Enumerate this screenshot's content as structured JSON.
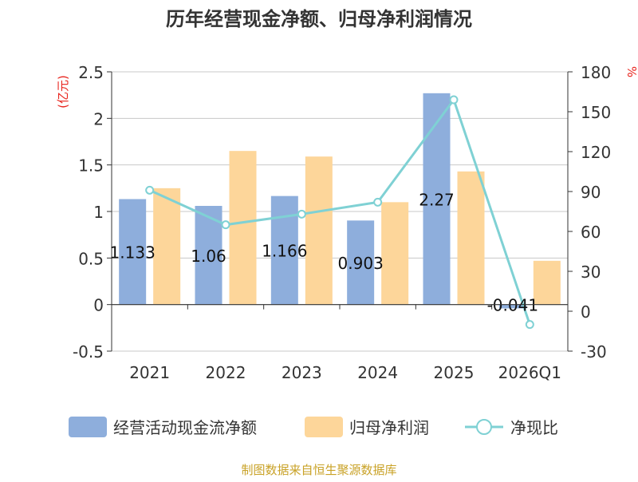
{
  "chart_data": {
    "type": "bar",
    "title": "历年经营现金净额、归母净利润情况",
    "categories": [
      "2021",
      "2022",
      "2023",
      "2024",
      "2025",
      "2026Q1"
    ],
    "left_axis": {
      "unit_label": "(亿元)",
      "ylim": [
        -0.5,
        2.5
      ],
      "ticks": [
        -0.5,
        0,
        0.5,
        1,
        1.5,
        2,
        2.5
      ],
      "tick_labels": [
        "-0.5",
        "0",
        "0.5",
        "1",
        "1.5",
        "2",
        "2.5"
      ]
    },
    "right_axis": {
      "unit_label": "%",
      "ylim": [
        -30,
        180
      ],
      "ticks": [
        -30,
        0,
        30,
        60,
        90,
        120,
        150,
        180
      ],
      "tick_labels": [
        "-30",
        "0",
        "30",
        "60",
        "90",
        "120",
        "150",
        "180"
      ]
    },
    "series": [
      {
        "name": "经营活动现金流净额",
        "kind": "bar",
        "axis": "left",
        "color": "#8eaedc",
        "values": [
          1.133,
          1.06,
          1.166,
          0.903,
          2.27,
          -0.041
        ],
        "data_labels": [
          "1.133",
          "1.06",
          "1.166",
          "0.903",
          "2.27",
          "-0.041"
        ]
      },
      {
        "name": "归母净利润",
        "kind": "bar",
        "axis": "left",
        "color": "#fdd69a",
        "values": [
          1.25,
          1.65,
          1.59,
          1.1,
          1.43,
          0.47
        ]
      },
      {
        "name": "净现比",
        "kind": "line",
        "axis": "right",
        "color": "#7fd1d4",
        "values": [
          91,
          65,
          73,
          82,
          159,
          -10
        ]
      }
    ],
    "legend": {
      "position": "bottom"
    }
  },
  "source_note": "制图数据来自恒生聚源数据库"
}
